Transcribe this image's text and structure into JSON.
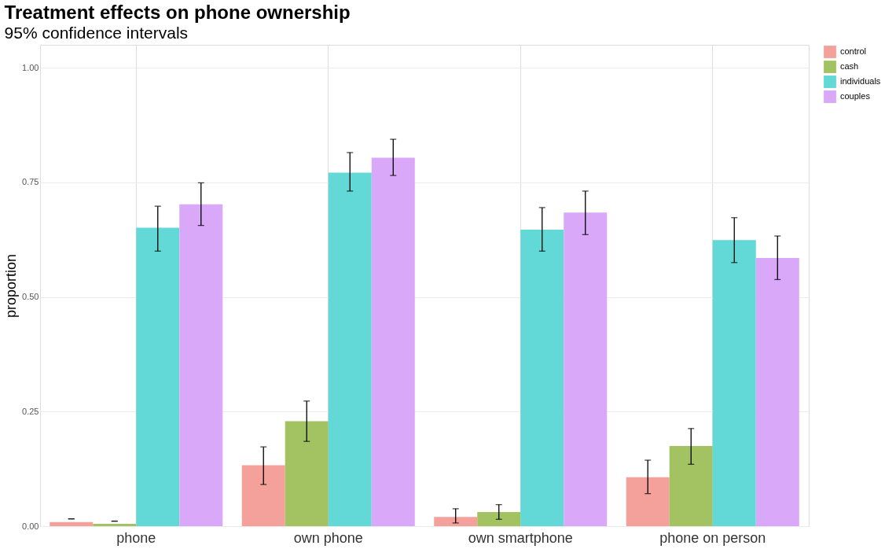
{
  "chart_data": {
    "type": "bar",
    "title": "Treatment effects on phone ownership",
    "subtitle": "95% confidence intervals",
    "ylabel": "proportion",
    "categories": [
      "phone",
      "own phone",
      "own smartphone",
      "phone on person"
    ],
    "series": [
      {
        "name": "control",
        "color": "#f5a19b",
        "values": [
          0.009,
          0.133,
          0.02,
          0.107
        ],
        "errors": [
          [
            0.016,
            0.016
          ],
          [
            0.091,
            0.173
          ],
          [
            0.007,
            0.038
          ],
          [
            0.071,
            0.144
          ]
        ]
      },
      {
        "name": "cash",
        "color": "#a3c261",
        "values": [
          0.005,
          0.229,
          0.031,
          0.175
        ],
        "errors": [
          [
            0.011,
            0.011
          ],
          [
            0.185,
            0.273
          ],
          [
            0.015,
            0.047
          ],
          [
            0.135,
            0.213
          ]
        ]
      },
      {
        "name": "individuals",
        "color": "#62d9d6",
        "values": [
          0.651,
          0.771,
          0.647,
          0.624
        ],
        "errors": [
          [
            0.6,
            0.698
          ],
          [
            0.731,
            0.815
          ],
          [
            0.6,
            0.695
          ],
          [
            0.575,
            0.673
          ]
        ]
      },
      {
        "name": "couples",
        "color": "#d9a8f8",
        "values": [
          0.702,
          0.804,
          0.684,
          0.585
        ],
        "errors": [
          [
            0.656,
            0.749
          ],
          [
            0.765,
            0.844
          ],
          [
            0.636,
            0.731
          ],
          [
            0.538,
            0.633
          ]
        ]
      }
    ],
    "ylim": [
      0,
      1.05
    ],
    "yticks": [
      {
        "value": 0,
        "label": "0.00"
      },
      {
        "value": 0.25,
        "label": "0.25"
      },
      {
        "value": 0.5,
        "label": "0.50"
      },
      {
        "value": 0.75,
        "label": "0.75"
      },
      {
        "value": 1,
        "label": "1.00"
      }
    ],
    "grid": true,
    "legend": "right"
  }
}
